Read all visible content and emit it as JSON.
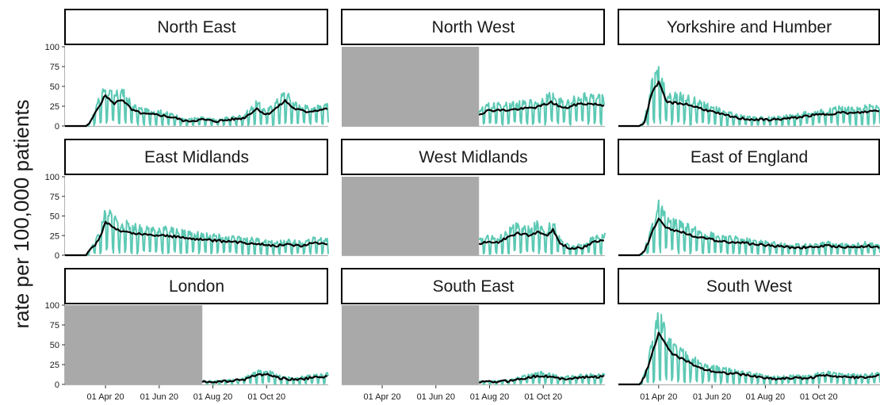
{
  "chart_data": {
    "type": "line",
    "layout": "facet-grid 3x3",
    "title": "",
    "xlabel": "",
    "ylabel": "rate per 100,000 patients",
    "ylim": [
      0,
      100
    ],
    "yticks": [
      0,
      25,
      50,
      75,
      100
    ],
    "x_range": [
      "2020-02-15",
      "2020-12-10"
    ],
    "xticks": [
      {
        "date": "2020-04-01",
        "label": "01 Apr 20"
      },
      {
        "date": "2020-06-01",
        "label": "01 Jun 20"
      },
      {
        "date": "2020-08-01",
        "label": "01 Aug 20"
      },
      {
        "date": "2020-10-01",
        "label": "01 Oct 20"
      }
    ],
    "colors": {
      "daily": "#5CC9B4",
      "rolling": "#000000",
      "missing": "#A9A9A9",
      "strip_border": "#000000",
      "axis": "#B3B3B3"
    },
    "series_styles": [
      {
        "key": "daily",
        "style": "thin teal line, daily rate"
      },
      {
        "key": "rolling",
        "style": "thick black line, smoothed rate"
      }
    ],
    "panels": [
      {
        "name": "North East",
        "missing_until": null,
        "daily_peak_level": [
          [
            0,
            0
          ],
          [
            0.1,
            0
          ],
          [
            0.12,
            15
          ],
          [
            0.15,
            40
          ],
          [
            0.2,
            30
          ],
          [
            0.25,
            20
          ],
          [
            0.4,
            12
          ],
          [
            0.5,
            8
          ],
          [
            0.6,
            8
          ],
          [
            0.7,
            14
          ],
          [
            0.78,
            25
          ],
          [
            0.85,
            30
          ],
          [
            0.9,
            22
          ],
          [
            1,
            25
          ]
        ],
        "smooth": [
          [
            "2020-02-15",
            0
          ],
          [
            "2020-03-10",
            0
          ],
          [
            "2020-03-15",
            5
          ],
          [
            "2020-03-22",
            20
          ],
          [
            "2020-04-01",
            39
          ],
          [
            "2020-04-10",
            28
          ],
          [
            "2020-04-20",
            34
          ],
          [
            "2020-05-01",
            20
          ],
          [
            "2020-05-15",
            15
          ],
          [
            "2020-06-01",
            14
          ],
          [
            "2020-06-20",
            10
          ],
          [
            "2020-07-01",
            6
          ],
          [
            "2020-07-20",
            8
          ],
          [
            "2020-08-05",
            6
          ],
          [
            "2020-08-20",
            8
          ],
          [
            "2020-09-05",
            10
          ],
          [
            "2020-09-20",
            22
          ],
          [
            "2020-10-01",
            14
          ],
          [
            "2020-10-15",
            25
          ],
          [
            "2020-10-22",
            32
          ],
          [
            "2020-11-01",
            22
          ],
          [
            "2020-11-15",
            18
          ],
          [
            "2020-12-10",
            22
          ]
        ]
      },
      {
        "name": "North West",
        "missing_until": "2020-07-20",
        "smooth": [
          [
            "2020-07-20",
            15
          ],
          [
            "2020-08-01",
            20
          ],
          [
            "2020-08-20",
            20
          ],
          [
            "2020-09-10",
            22
          ],
          [
            "2020-09-25",
            24
          ],
          [
            "2020-10-10",
            30
          ],
          [
            "2020-10-25",
            22
          ],
          [
            "2020-11-10",
            28
          ],
          [
            "2020-11-25",
            28
          ],
          [
            "2020-12-10",
            26
          ]
        ]
      },
      {
        "name": "Yorkshire and Humber",
        "missing_until": null,
        "smooth": [
          [
            "2020-02-15",
            0
          ],
          [
            "2020-03-10",
            0
          ],
          [
            "2020-03-16",
            5
          ],
          [
            "2020-03-25",
            45
          ],
          [
            "2020-04-01",
            55
          ],
          [
            "2020-04-10",
            30
          ],
          [
            "2020-05-01",
            28
          ],
          [
            "2020-05-20",
            22
          ],
          [
            "2020-06-10",
            15
          ],
          [
            "2020-07-01",
            10
          ],
          [
            "2020-07-20",
            8
          ],
          [
            "2020-08-10",
            8
          ],
          [
            "2020-09-01",
            10
          ],
          [
            "2020-09-20",
            13
          ],
          [
            "2020-10-10",
            15
          ],
          [
            "2020-10-25",
            17
          ],
          [
            "2020-11-10",
            16
          ],
          [
            "2020-11-25",
            18
          ],
          [
            "2020-12-10",
            20
          ]
        ]
      },
      {
        "name": "East Midlands",
        "missing_until": null,
        "smooth": [
          [
            "2020-02-15",
            0
          ],
          [
            "2020-03-10",
            0
          ],
          [
            "2020-03-16",
            8
          ],
          [
            "2020-03-25",
            20
          ],
          [
            "2020-04-01",
            43
          ],
          [
            "2020-04-15",
            32
          ],
          [
            "2020-05-01",
            28
          ],
          [
            "2020-05-20",
            26
          ],
          [
            "2020-06-10",
            25
          ],
          [
            "2020-07-01",
            22
          ],
          [
            "2020-07-20",
            20
          ],
          [
            "2020-08-10",
            18
          ],
          [
            "2020-09-01",
            16
          ],
          [
            "2020-09-20",
            15
          ],
          [
            "2020-10-10",
            12
          ],
          [
            "2020-10-25",
            14
          ],
          [
            "2020-11-10",
            12
          ],
          [
            "2020-11-25",
            16
          ],
          [
            "2020-12-10",
            15
          ]
        ]
      },
      {
        "name": "West Midlands",
        "missing_until": "2020-07-20",
        "smooth": [
          [
            "2020-07-20",
            14
          ],
          [
            "2020-08-01",
            18
          ],
          [
            "2020-08-10",
            16
          ],
          [
            "2020-08-20",
            22
          ],
          [
            "2020-09-01",
            28
          ],
          [
            "2020-09-15",
            25
          ],
          [
            "2020-09-25",
            30
          ],
          [
            "2020-10-05",
            25
          ],
          [
            "2020-10-12",
            32
          ],
          [
            "2020-10-20",
            15
          ],
          [
            "2020-11-01",
            8
          ],
          [
            "2020-11-15",
            10
          ],
          [
            "2020-11-25",
            16
          ],
          [
            "2020-12-10",
            20
          ]
        ]
      },
      {
        "name": "East of England",
        "missing_until": null,
        "smooth": [
          [
            "2020-02-15",
            0
          ],
          [
            "2020-03-10",
            0
          ],
          [
            "2020-03-16",
            5
          ],
          [
            "2020-03-25",
            30
          ],
          [
            "2020-04-01",
            48
          ],
          [
            "2020-04-10",
            35
          ],
          [
            "2020-05-01",
            28
          ],
          [
            "2020-05-20",
            22
          ],
          [
            "2020-06-10",
            18
          ],
          [
            "2020-07-01",
            16
          ],
          [
            "2020-07-20",
            14
          ],
          [
            "2020-08-10",
            12
          ],
          [
            "2020-09-01",
            10
          ],
          [
            "2020-09-20",
            10
          ],
          [
            "2020-10-10",
            12
          ],
          [
            "2020-10-25",
            11
          ],
          [
            "2020-11-10",
            10
          ],
          [
            "2020-11-25",
            12
          ],
          [
            "2020-12-10",
            10
          ]
        ]
      },
      {
        "name": "London",
        "missing_until": "2020-07-20",
        "smooth": [
          [
            "2020-07-20",
            3
          ],
          [
            "2020-08-01",
            3
          ],
          [
            "2020-08-20",
            4
          ],
          [
            "2020-09-05",
            6
          ],
          [
            "2020-09-20",
            12
          ],
          [
            "2020-10-01",
            13
          ],
          [
            "2020-10-15",
            8
          ],
          [
            "2020-11-01",
            6
          ],
          [
            "2020-11-20",
            8
          ],
          [
            "2020-12-10",
            10
          ]
        ]
      },
      {
        "name": "South East",
        "missing_until": "2020-07-20",
        "smooth": [
          [
            "2020-07-20",
            3
          ],
          [
            "2020-08-01",
            3
          ],
          [
            "2020-08-20",
            4
          ],
          [
            "2020-09-05",
            7
          ],
          [
            "2020-09-20",
            10
          ],
          [
            "2020-10-01",
            11
          ],
          [
            "2020-10-20",
            7
          ],
          [
            "2020-11-05",
            8
          ],
          [
            "2020-11-20",
            9
          ],
          [
            "2020-12-10",
            10
          ]
        ]
      },
      {
        "name": "South West",
        "missing_until": null,
        "smooth": [
          [
            "2020-02-15",
            0
          ],
          [
            "2020-03-10",
            0
          ],
          [
            "2020-03-16",
            10
          ],
          [
            "2020-03-25",
            40
          ],
          [
            "2020-04-01",
            65
          ],
          [
            "2020-04-15",
            40
          ],
          [
            "2020-05-01",
            30
          ],
          [
            "2020-05-20",
            20
          ],
          [
            "2020-06-10",
            15
          ],
          [
            "2020-07-01",
            13
          ],
          [
            "2020-07-20",
            10
          ],
          [
            "2020-08-10",
            7
          ],
          [
            "2020-09-01",
            8
          ],
          [
            "2020-09-20",
            8
          ],
          [
            "2020-10-10",
            12
          ],
          [
            "2020-10-25",
            10
          ],
          [
            "2020-11-10",
            9
          ],
          [
            "2020-11-25",
            9
          ],
          [
            "2020-12-10",
            11
          ]
        ]
      }
    ]
  }
}
